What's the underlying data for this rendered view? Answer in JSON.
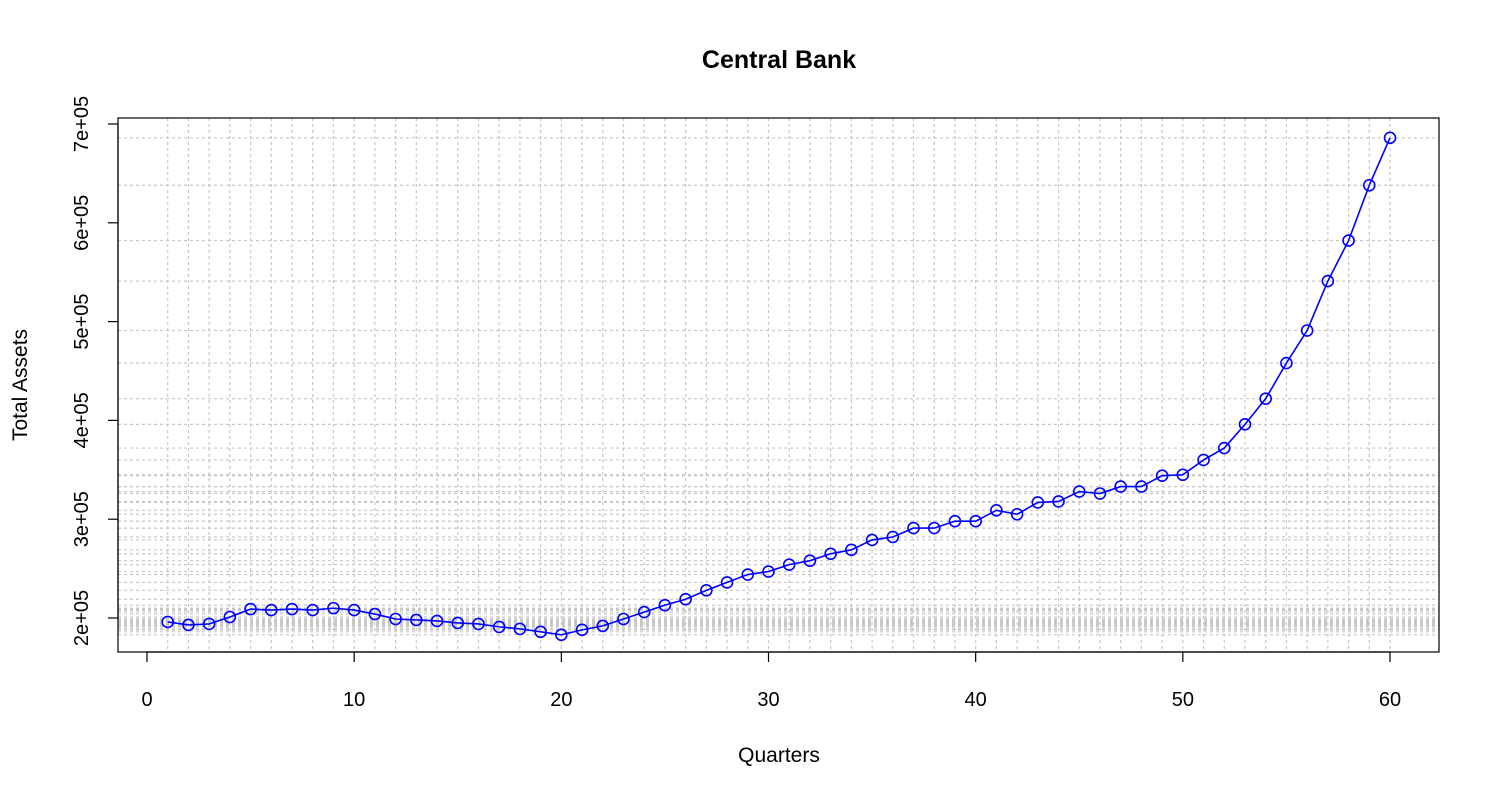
{
  "chart_data": {
    "type": "line",
    "title": "Central Bank",
    "xlabel": "Quarters",
    "ylabel": "Total Assets",
    "xlim": [
      0,
      61
    ],
    "ylim": [
      180000,
      700000
    ],
    "x_ticks": [
      0,
      10,
      20,
      30,
      40,
      50,
      60
    ],
    "x_tick_labels": [
      "0",
      "10",
      "20",
      "30",
      "40",
      "50",
      "60"
    ],
    "y_ticks": [
      200000,
      300000,
      400000,
      500000,
      600000,
      700000
    ],
    "y_tick_labels": [
      "2e+05",
      "3e+05",
      "4e+05",
      "5e+05",
      "6e+05",
      "7e+05"
    ],
    "grid": true,
    "line_color": "#0000ff",
    "grid_color": "#c8c8c8",
    "series": [
      {
        "x": [
          1,
          2,
          3,
          4,
          5,
          6,
          7,
          8,
          9,
          10,
          11,
          12,
          13,
          14,
          15,
          16,
          17,
          18,
          19,
          20,
          21,
          22,
          23,
          24,
          25,
          26,
          27,
          28,
          29,
          30,
          31,
          32,
          33,
          34,
          35,
          36,
          37,
          38,
          39,
          40,
          41,
          42,
          43,
          44,
          45,
          46,
          47,
          48,
          49,
          50,
          51,
          52,
          53,
          54,
          55,
          56,
          57,
          58,
          59,
          60
        ],
        "values": [
          196000,
          193000,
          194000,
          201000,
          209000,
          208000,
          209000,
          208000,
          210000,
          208000,
          204000,
          199000,
          198000,
          197000,
          195000,
          194000,
          191000,
          189000,
          186000,
          183000,
          188000,
          192000,
          199000,
          206000,
          213000,
          219000,
          228000,
          236000,
          244000,
          247000,
          254000,
          258000,
          265000,
          269000,
          279000,
          282000,
          291000,
          291000,
          298000,
          298000,
          309000,
          305000,
          317000,
          318000,
          328000,
          326000,
          333000,
          333000,
          344000,
          345000,
          360000,
          372000,
          396000,
          422000,
          458000,
          491000,
          541000,
          582000,
          638000,
          686000
        ]
      }
    ]
  }
}
